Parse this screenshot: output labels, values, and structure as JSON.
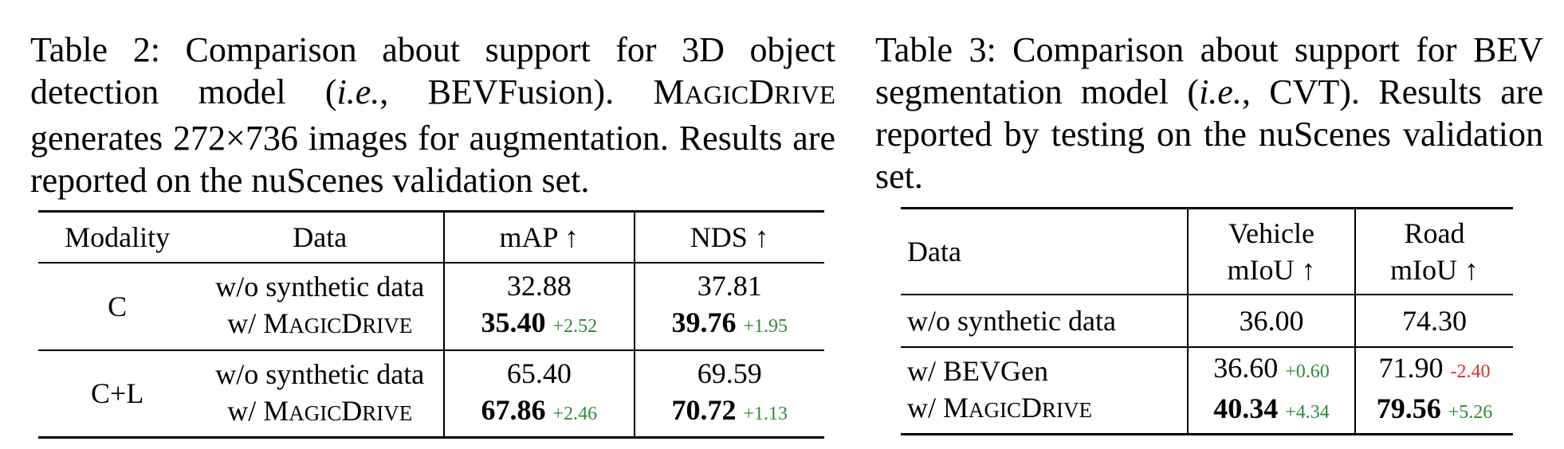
{
  "table2": {
    "caption": {
      "label": "Table 2:",
      "text_a": "Comparison about support for 3D object detection model (",
      "ie": "i.e.",
      "text_b": ", BEVFusion).",
      "brand_M": "M",
      "brand_agic": "AGIC",
      "brand_D": "D",
      "brand_rive": "RIVE",
      "text_c": "generates 272×736 images for augmentation. Results are reported on the nuScenes validation set."
    },
    "headers": [
      "Modality",
      "Data",
      "mAP ↑",
      "NDS ↑"
    ],
    "groups": [
      {
        "modality": "C",
        "rows": [
          {
            "data": "w/o synthetic data",
            "map": "32.88",
            "nds": "37.81"
          },
          {
            "data_prefix": "w/ ",
            "map": "35.40",
            "map_delta": "+2.52",
            "nds": "39.76",
            "nds_delta": "+1.95"
          }
        ]
      },
      {
        "modality": "C+L",
        "rows": [
          {
            "data": "w/o synthetic data",
            "map": "65.40",
            "nds": "69.59"
          },
          {
            "data_prefix": "w/ ",
            "map": "67.86",
            "map_delta": "+2.46",
            "nds": "70.72",
            "nds_delta": "+1.13"
          }
        ]
      }
    ]
  },
  "table3": {
    "caption": {
      "label": "Table 3:",
      "text_a": "Comparison about support for BEV segmentation model (",
      "ie": "i.e.",
      "text_b": ", CVT). Results are reported by testing on the nuScenes validation set."
    },
    "headers": {
      "data": "Data",
      "vehicle_l1": "Vehicle",
      "vehicle_l2": "mIoU ↑",
      "road_l1": "Road",
      "road_l2": "mIoU ↑"
    },
    "rows": [
      {
        "data": "w/o synthetic data",
        "vehicle": "36.00",
        "road": "74.30"
      },
      {
        "data": "w/ BEVGen",
        "vehicle": "36.60",
        "vehicle_delta": "+0.60",
        "road": "71.90",
        "road_delta": "-2.40"
      },
      {
        "data_prefix": "w/ ",
        "vehicle": "40.34",
        "vehicle_delta": "+4.34",
        "road": "79.56",
        "road_delta": "+5.26"
      }
    ]
  },
  "colors": {
    "positive_delta": "#2e8b3a",
    "negative_delta": "#d9342b"
  }
}
